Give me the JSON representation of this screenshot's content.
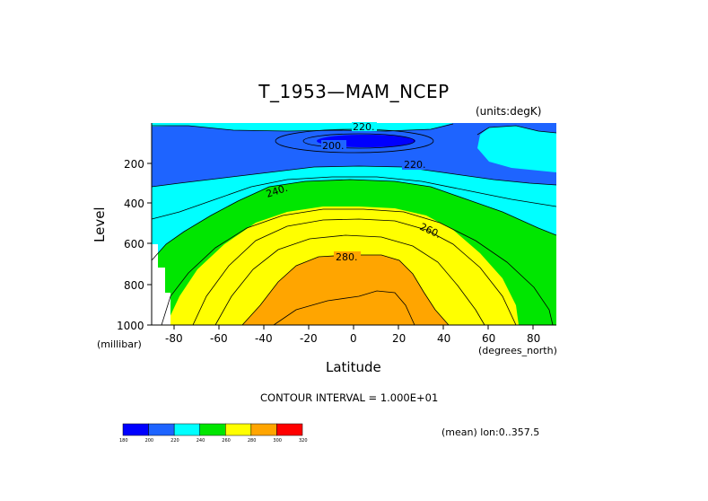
{
  "chart_data": {
    "type": "heatmap",
    "title": "T_1953—MAM_NCEP",
    "units_label": "(units:degK)",
    "xlabel": "Latitude",
    "ylabel": "Level",
    "x_unit_label": "(degrees_north)",
    "y_unit_label": "(millibar)",
    "xlim": [
      -90,
      90
    ],
    "ylim": [
      1000,
      10
    ],
    "x_ticks": [
      "-80",
      "-60",
      "-40",
      "-20",
      "0",
      "20",
      "40",
      "60",
      "80"
    ],
    "y_ticks": [
      "200",
      "400",
      "600",
      "800",
      "1000"
    ],
    "contour_interval_label": "CONTOUR INTERVAL = 1.000E+01",
    "mean_label": "(mean) lon:0..357.5",
    "contour_labels": [
      "220.",
      "200.",
      "220.",
      "240.",
      "260.",
      "280."
    ],
    "colorbar": {
      "levels": [
        "180",
        "200",
        "220",
        "240",
        "260",
        "280",
        "300",
        "320"
      ],
      "colors": [
        "#0000ff",
        "#1e64ff",
        "#00ffff",
        "#00e600",
        "#ffff00",
        "#ffa500",
        "#ff0000"
      ]
    }
  }
}
